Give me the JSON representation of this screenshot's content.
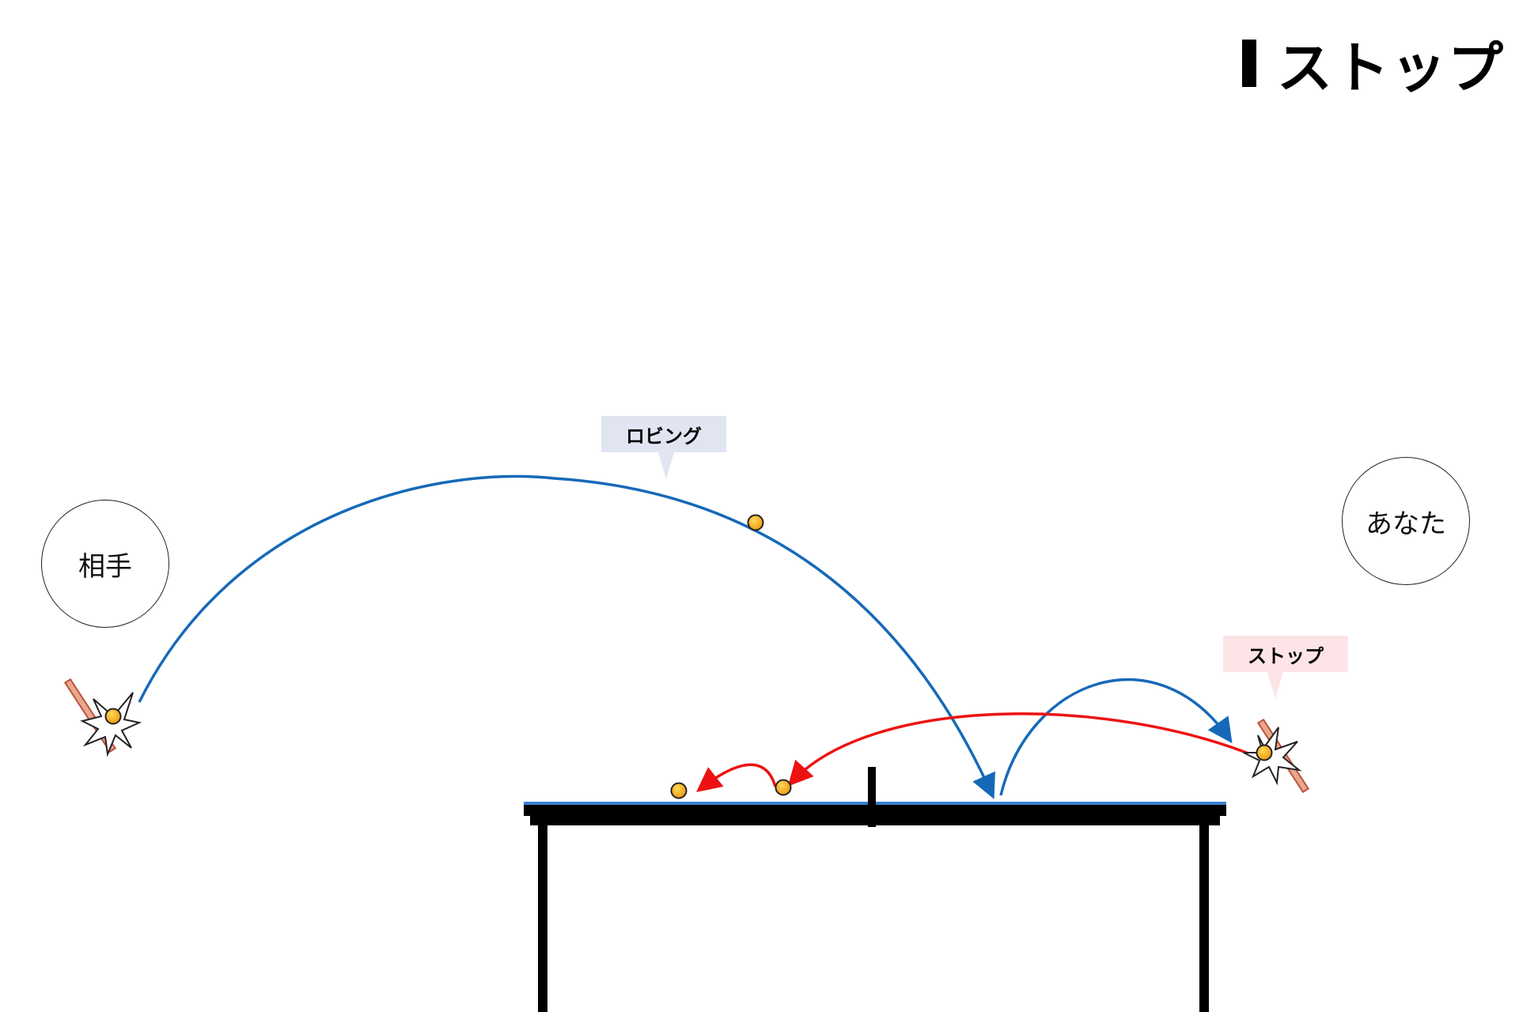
{
  "title": "ストップ",
  "players": {
    "opponent": "相手",
    "you": "あなた"
  },
  "callouts": {
    "lob": "ロビング",
    "stop": "ストップ"
  },
  "colors": {
    "lob_path": "#1669b8",
    "stop_path": "#ee1111",
    "ball": "#f4a417",
    "table_surface": "#3a7fcf",
    "lob_callout_bg": "#e1e5f2",
    "stop_callout_bg": "#fde4e6"
  }
}
